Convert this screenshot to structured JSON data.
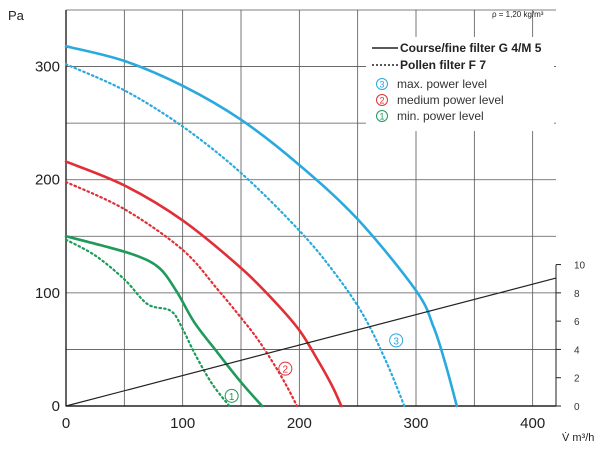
{
  "chart_data": {
    "type": "line",
    "density_note": "ρ = 1,20 kg/m³",
    "ylabel": "Pa",
    "xlabel": "V̇ m³/h",
    "xlim": [
      0,
      420
    ],
    "ylim": [
      0,
      350
    ],
    "x_ticks": [
      0,
      100,
      200,
      300,
      400
    ],
    "y_ticks": [
      0,
      100,
      200,
      300
    ],
    "grid": true,
    "grid_x": [
      0,
      50,
      100,
      150,
      200,
      250,
      300,
      350,
      400
    ],
    "grid_y": [
      0,
      50,
      100,
      150,
      200,
      250,
      300,
      350
    ],
    "legend_position": "top-right",
    "legend_lines": [
      {
        "label": "Course/fine filter G 4/M 5",
        "dash": "solid"
      },
      {
        "label": "Pollen filter F 7",
        "dash": "dotted"
      }
    ],
    "legend_levels": [
      {
        "marker": "3",
        "label": "max. power level",
        "color": "#2AA9DF"
      },
      {
        "marker": "2",
        "label": "medium power level",
        "color": "#E03036"
      },
      {
        "marker": "1",
        "label": "min. power level",
        "color": "#1E9A5A"
      }
    ],
    "curve_markers": [
      {
        "text": "3",
        "x": 283,
        "y": 58,
        "color": "#2AA9DF"
      },
      {
        "text": "2",
        "x": 188,
        "y": 33,
        "color": "#E03036"
      },
      {
        "text": "1",
        "x": 142,
        "y": 9,
        "color": "#1E9A5A"
      }
    ],
    "right_axis": {
      "ticks": [
        0,
        2,
        4,
        6,
        8,
        10
      ],
      "tick_y": [
        0,
        25,
        50,
        75,
        100,
        125
      ]
    },
    "series": [
      {
        "level": "max",
        "filter": "G 4/M 5",
        "dash": "solid",
        "color": "#2AA9DF",
        "x": [
          0,
          50,
          100,
          150,
          200,
          250,
          300,
          315,
          325,
          335
        ],
        "y": [
          318,
          305,
          283,
          253,
          213,
          165,
          102,
          70,
          38,
          0
        ]
      },
      {
        "level": "max",
        "filter": "F 7",
        "dash": "dotted",
        "color": "#2AA9DF",
        "x": [
          0,
          50,
          100,
          150,
          200,
          230,
          255,
          275,
          290
        ],
        "y": [
          302,
          279,
          247,
          206,
          155,
          118,
          80,
          38,
          0
        ]
      },
      {
        "level": "medium",
        "filter": "G 4/M 5",
        "dash": "solid",
        "color": "#E03036",
        "x": [
          0,
          50,
          100,
          150,
          180,
          200,
          215,
          228,
          236
        ],
        "y": [
          216,
          195,
          164,
          122,
          91,
          67,
          42,
          18,
          0
        ]
      },
      {
        "level": "medium",
        "filter": "F 7",
        "dash": "dotted",
        "color": "#E03036",
        "x": [
          0,
          50,
          100,
          130,
          150,
          165,
          180,
          190,
          198
        ],
        "y": [
          198,
          174,
          138,
          103,
          78,
          58,
          34,
          16,
          0
        ]
      },
      {
        "level": "min",
        "filter": "G 4/M 5",
        "dash": "solid",
        "color": "#1E9A5A",
        "x": [
          0,
          30,
          60,
          80,
          95,
          110,
          130,
          150,
          168
        ],
        "y": [
          150,
          142,
          133,
          122,
          101,
          74,
          47,
          21,
          0
        ]
      },
      {
        "level": "min",
        "filter": "F 7",
        "dash": "dotted",
        "color": "#1E9A5A",
        "x": [
          0,
          25,
          50,
          70,
          90,
          100,
          110,
          125,
          140
        ],
        "y": [
          147,
          133,
          112,
          90,
          84,
          68,
          47,
          20,
          0
        ]
      },
      {
        "level": "system",
        "filter": "curve",
        "dash": "solid",
        "color": "#222222",
        "x": [
          0,
          420
        ],
        "y": [
          0,
          113
        ]
      }
    ]
  }
}
